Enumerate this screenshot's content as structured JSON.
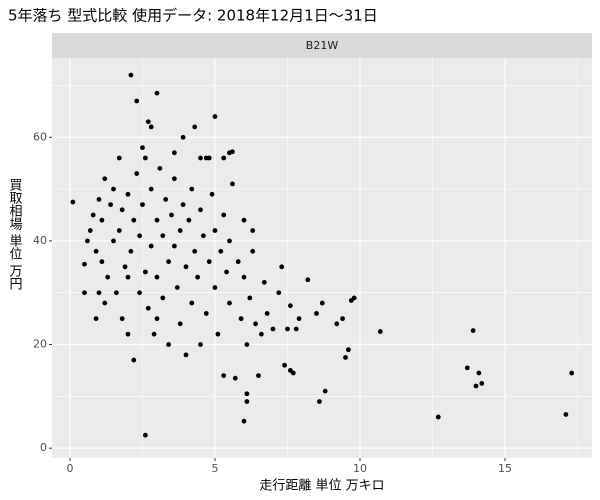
{
  "chart_data": {
    "type": "scatter",
    "title": "5年落ち 型式比較 使用データ: 2018年12月1日～31日",
    "facet_label": "B21W",
    "x_label": "走行距離 単位 万キロ",
    "y_label": "買取相場 単位 万円",
    "color": "#000000",
    "grid": true,
    "xlim": [
      -0.62,
      18.0
    ],
    "ylim": [
      -1.9,
      75.3
    ],
    "xticks": [
      0,
      5,
      10,
      15
    ],
    "yticks": [
      0,
      20,
      40,
      60
    ],
    "x_minor_grid": [
      2.5,
      7.5,
      12.5,
      17.5
    ],
    "y_minor_grid": [
      10,
      30,
      50,
      70
    ],
    "x": [
      0.1,
      2.1,
      2.3,
      3.0,
      10.7,
      12.7,
      13.7,
      13.9,
      14.0,
      14.1,
      14.2,
      17.1,
      17.3,
      2.6,
      6.0,
      6.1,
      6.1,
      8.6,
      8.8,
      9.5,
      9.6,
      9.7,
      9.8,
      9.4,
      9.2,
      8.7,
      8.5,
      8.2,
      7.7,
      7.6,
      7.4,
      7.9,
      7.6,
      5.0,
      4.3,
      3.9,
      2.8,
      2.7,
      2.5,
      3.6,
      5.5,
      5.6,
      4.5,
      4.7,
      0.5,
      0.5,
      0.6,
      0.7,
      0.8,
      0.9,
      0.9,
      1.0,
      1.1,
      1.1,
      1.2,
      1.2,
      1.3,
      1.4,
      1.5,
      1.5,
      1.6,
      1.7,
      1.7,
      1.8,
      1.8,
      1.9,
      2.0,
      2.0,
      2.1,
      2.2,
      2.2,
      2.3,
      2.4,
      2.4,
      2.5,
      2.6,
      2.6,
      2.7,
      2.8,
      2.8,
      2.9,
      3.0,
      3.0,
      3.1,
      3.2,
      3.2,
      3.3,
      3.4,
      3.4,
      3.5,
      3.6,
      3.6,
      3.7,
      3.8,
      3.8,
      3.9,
      4.0,
      4.0,
      4.1,
      4.2,
      4.2,
      4.3,
      4.4,
      4.5,
      4.5,
      4.6,
      4.7,
      4.8,
      4.9,
      5.0,
      5.0,
      5.1,
      5.2,
      5.3,
      5.3,
      5.4,
      5.5,
      5.5,
      5.6,
      5.7,
      5.8,
      5.9,
      6.0,
      6.0,
      6.1,
      6.2,
      6.3,
      6.4,
      6.5,
      6.6,
      6.7,
      6.8,
      7.0,
      7.2,
      7.3,
      7.5,
      7.8,
      6.3,
      3.0,
      2.0,
      1.0,
      4.8,
      5.3
    ],
    "values": [
      47.5,
      72,
      67,
      68.5,
      22.5,
      6,
      15.5,
      22.7,
      12,
      14.5,
      12.5,
      6.5,
      14.5,
      2.5,
      5.2,
      9,
      10.5,
      9,
      11,
      17.5,
      19,
      28.5,
      29,
      25,
      24,
      28,
      26,
      32.5,
      14.5,
      15,
      16,
      25,
      27.5,
      64,
      62,
      60,
      62,
      63,
      58,
      57,
      57,
      57.2,
      56,
      56,
      35.5,
      30,
      40,
      42,
      45,
      38,
      25,
      48,
      36,
      44,
      52,
      28,
      33,
      47,
      50,
      40,
      30,
      42,
      56,
      25,
      46,
      35,
      49,
      22,
      38,
      44,
      17,
      53,
      30,
      41,
      47,
      34,
      56,
      27,
      39,
      50,
      22,
      44,
      33,
      54,
      29,
      41,
      48,
      36,
      20,
      45,
      39,
      52,
      31,
      42,
      24,
      47,
      35,
      18,
      44,
      50,
      28,
      38,
      33,
      46,
      20,
      41,
      26,
      36,
      49,
      31,
      42,
      22,
      38,
      45,
      14,
      34,
      28,
      40,
      51,
      13.5,
      36,
      25,
      33,
      44,
      20,
      29,
      38,
      24,
      14,
      22,
      32,
      26,
      23,
      30,
      35,
      23,
      23,
      42,
      25,
      33,
      30,
      56,
      56
    ]
  }
}
